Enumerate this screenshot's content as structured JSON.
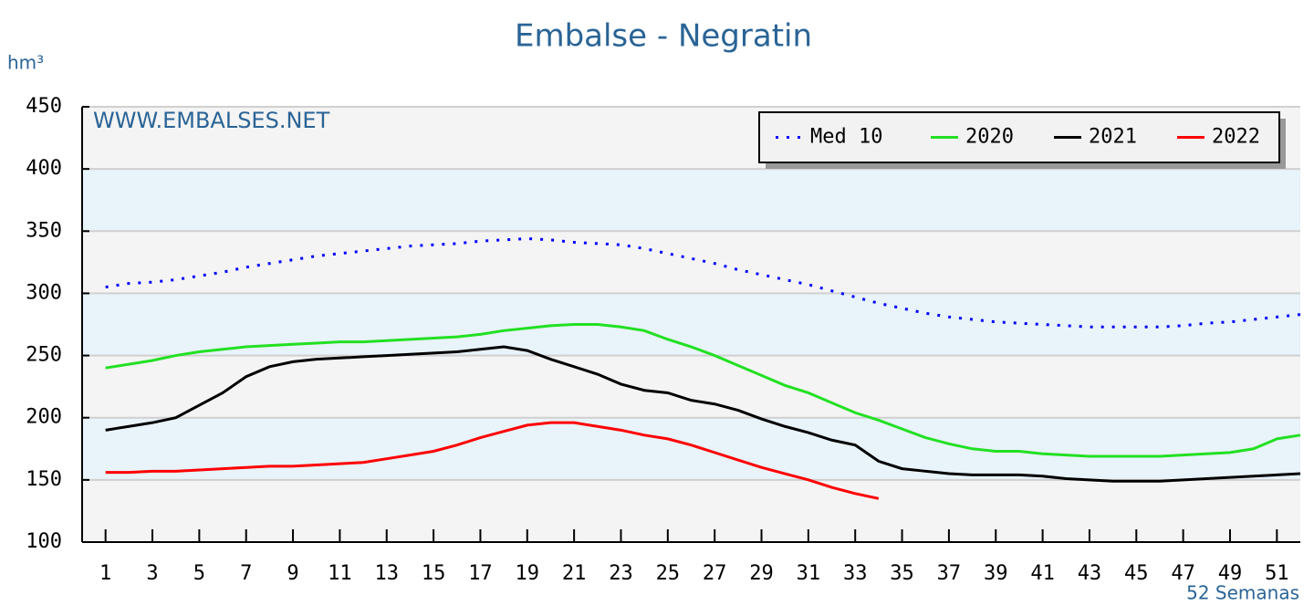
{
  "chart_data": {
    "type": "line",
    "title": "Embalse - Negratin",
    "y_label": "hm³",
    "watermark": "WWW.EMBALSES.NET",
    "x_label": "52 Semanas",
    "x": [
      1,
      2,
      3,
      4,
      5,
      6,
      7,
      8,
      9,
      10,
      11,
      12,
      13,
      14,
      15,
      16,
      17,
      18,
      19,
      20,
      21,
      22,
      23,
      24,
      25,
      26,
      27,
      28,
      29,
      30,
      31,
      32,
      33,
      34,
      35,
      36,
      37,
      38,
      39,
      40,
      41,
      42,
      43,
      44,
      45,
      46,
      47,
      48,
      49,
      50,
      51,
      52
    ],
    "xlim": [
      0,
      52
    ],
    "xticks": [
      1,
      3,
      5,
      7,
      9,
      11,
      13,
      15,
      17,
      19,
      21,
      23,
      25,
      27,
      29,
      31,
      33,
      35,
      37,
      39,
      41,
      43,
      45,
      47,
      49,
      51
    ],
    "ylim": [
      100,
      450
    ],
    "yticks": [
      100,
      150,
      200,
      250,
      300,
      350,
      400,
      450
    ],
    "grid": true,
    "legend": "top-right",
    "series": [
      {
        "name": "Med 10",
        "color": "#0000ff",
        "style": "dotted",
        "values": [
          305,
          308,
          309,
          311,
          314,
          317,
          321,
          324,
          327,
          330,
          332,
          334,
          336,
          338,
          339,
          340,
          342,
          343,
          344,
          343,
          341,
          340,
          339,
          336,
          332,
          328,
          324,
          319,
          315,
          311,
          307,
          302,
          297,
          292,
          288,
          284,
          281,
          279,
          277,
          276,
          275,
          274,
          273,
          273,
          273,
          273,
          274,
          276,
          277,
          279,
          281,
          283
        ]
      },
      {
        "name": "2020",
        "color": "#22e022",
        "style": "solid",
        "values": [
          240,
          243,
          246,
          250,
          253,
          255,
          257,
          258,
          259,
          260,
          261,
          261,
          262,
          263,
          264,
          265,
          267,
          270,
          272,
          274,
          275,
          275,
          273,
          270,
          263,
          257,
          250,
          242,
          234,
          226,
          220,
          212,
          204,
          198,
          191,
          184,
          179,
          175,
          173,
          173,
          171,
          170,
          169,
          169,
          169,
          169,
          170,
          171,
          172,
          175,
          183,
          186
        ]
      },
      {
        "name": "2021",
        "color": "#000000",
        "style": "solid",
        "values": [
          190,
          193,
          196,
          200,
          210,
          220,
          233,
          241,
          245,
          247,
          248,
          249,
          250,
          251,
          252,
          253,
          255,
          257,
          254,
          247,
          241,
          235,
          227,
          222,
          220,
          214,
          211,
          206,
          199,
          193,
          188,
          182,
          178,
          165,
          159,
          157,
          155,
          154,
          154,
          154,
          153,
          151,
          150,
          149,
          149,
          149,
          150,
          151,
          152,
          153,
          154,
          155
        ]
      },
      {
        "name": "2022",
        "color": "#ff0000",
        "style": "solid",
        "values": [
          156,
          156,
          157,
          157,
          158,
          159,
          160,
          161,
          161,
          162,
          163,
          164,
          167,
          170,
          173,
          178,
          184,
          189,
          194,
          196,
          196,
          193,
          190,
          186,
          183,
          178,
          172,
          166,
          160,
          155,
          150,
          144,
          139,
          135,
          null,
          null,
          null,
          null,
          null,
          null,
          null,
          null,
          null,
          null,
          null,
          null,
          null,
          null,
          null,
          null,
          null,
          null
        ]
      }
    ]
  }
}
